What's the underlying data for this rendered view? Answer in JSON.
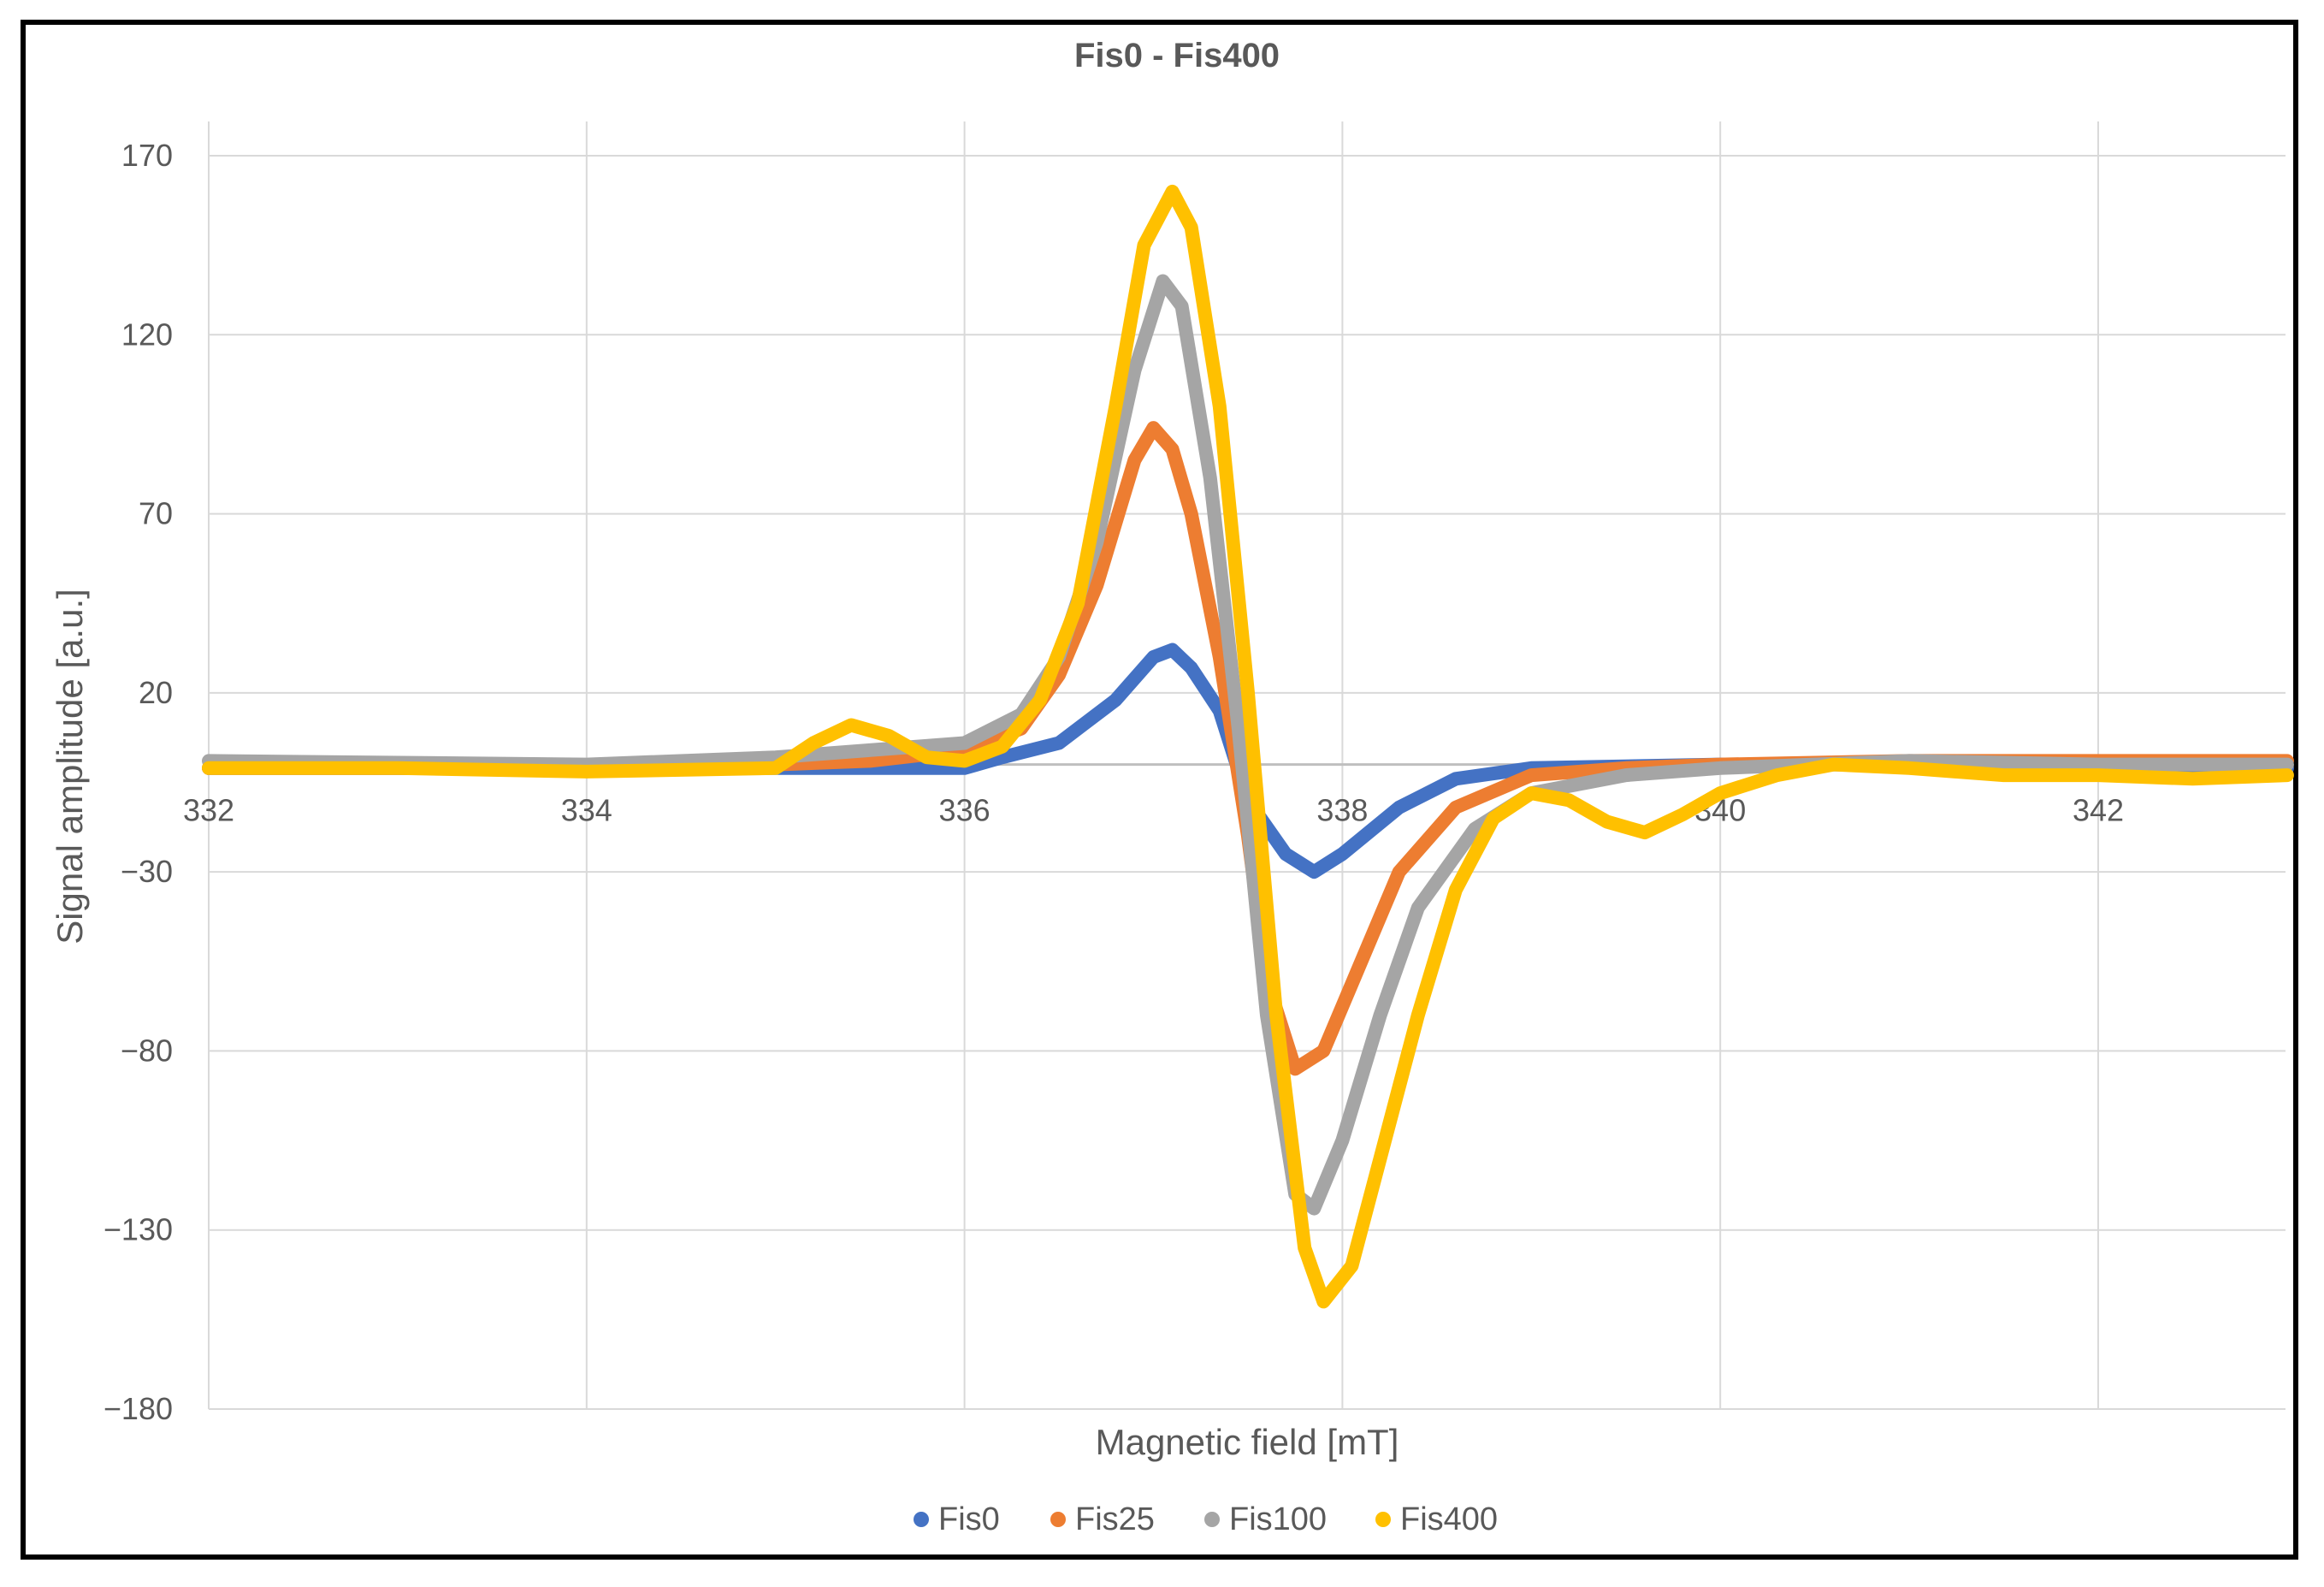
{
  "chart_data": {
    "type": "scatter",
    "title": "Fis0 - Fis400",
    "xlabel": "Magnetic field [mT]",
    "ylabel": "Signal amplitude [a.u.]",
    "xlim": [
      332,
      343
    ],
    "ylim": [
      -180,
      170
    ],
    "x_ticks": [
      "332",
      "334",
      "336",
      "338",
      "340",
      "342"
    ],
    "y_ticks": [
      "170",
      "120",
      "70",
      "20",
      "−30",
      "−80",
      "−130",
      "−180"
    ],
    "x_tick_values": [
      332,
      334,
      336,
      338,
      340,
      342
    ],
    "y_tick_values": [
      170,
      120,
      70,
      20,
      -30,
      -80,
      -130,
      -180
    ],
    "grid": true,
    "legend_position": "bottom",
    "series": [
      {
        "name": "Fis0",
        "color": "#4472C4",
        "points": [
          [
            332,
            -1
          ],
          [
            334,
            -1
          ],
          [
            335,
            -1
          ],
          [
            335.5,
            -1
          ],
          [
            336,
            -1
          ],
          [
            336.2,
            2
          ],
          [
            336.5,
            6
          ],
          [
            336.8,
            18
          ],
          [
            337.0,
            30
          ],
          [
            337.1,
            32
          ],
          [
            337.2,
            27
          ],
          [
            337.35,
            15
          ],
          [
            337.5,
            -10
          ],
          [
            337.7,
            -25
          ],
          [
            337.85,
            -30
          ],
          [
            338.0,
            -25
          ],
          [
            338.3,
            -12
          ],
          [
            338.6,
            -4
          ],
          [
            339,
            -1
          ],
          [
            340,
            0
          ],
          [
            341,
            0
          ],
          [
            342,
            0
          ],
          [
            343,
            -1
          ]
        ]
      },
      {
        "name": "Fis25",
        "color": "#ED7D31",
        "points": [
          [
            332,
            -1
          ],
          [
            334,
            -1
          ],
          [
            335,
            0
          ],
          [
            335.5,
            1
          ],
          [
            336,
            4
          ],
          [
            336.3,
            10
          ],
          [
            336.5,
            25
          ],
          [
            336.7,
            50
          ],
          [
            336.9,
            85
          ],
          [
            337.0,
            94
          ],
          [
            337.1,
            88
          ],
          [
            337.2,
            70
          ],
          [
            337.35,
            30
          ],
          [
            337.5,
            -20
          ],
          [
            337.6,
            -60
          ],
          [
            337.75,
            -85
          ],
          [
            337.9,
            -80
          ],
          [
            338.1,
            -55
          ],
          [
            338.3,
            -30
          ],
          [
            338.6,
            -12
          ],
          [
            339,
            -3
          ],
          [
            339.5,
            -1
          ],
          [
            340,
            0
          ],
          [
            341,
            1
          ],
          [
            342,
            1
          ],
          [
            343,
            1
          ]
        ]
      },
      {
        "name": "Fis100",
        "color": "#A5A5A5",
        "points": [
          [
            332,
            1
          ],
          [
            334,
            0
          ],
          [
            335,
            2
          ],
          [
            335.5,
            4
          ],
          [
            336,
            6
          ],
          [
            336.3,
            14
          ],
          [
            336.5,
            30
          ],
          [
            336.7,
            62
          ],
          [
            336.9,
            110
          ],
          [
            337.05,
            135
          ],
          [
            337.15,
            128
          ],
          [
            337.3,
            80
          ],
          [
            337.45,
            10
          ],
          [
            337.6,
            -70
          ],
          [
            337.75,
            -120
          ],
          [
            337.85,
            -124
          ],
          [
            338.0,
            -105
          ],
          [
            338.2,
            -70
          ],
          [
            338.4,
            -40
          ],
          [
            338.7,
            -18
          ],
          [
            339,
            -8
          ],
          [
            339.5,
            -3
          ],
          [
            340,
            -1
          ],
          [
            341,
            1
          ],
          [
            342,
            0
          ],
          [
            343,
            0
          ]
        ]
      },
      {
        "name": "Fis400",
        "color": "#FFC000",
        "points": [
          [
            332,
            -1
          ],
          [
            333,
            -1
          ],
          [
            334,
            -2
          ],
          [
            335,
            -1
          ],
          [
            335.2,
            6
          ],
          [
            335.4,
            11
          ],
          [
            335.6,
            8
          ],
          [
            335.8,
            2
          ],
          [
            336.0,
            1
          ],
          [
            336.2,
            5
          ],
          [
            336.4,
            18
          ],
          [
            336.6,
            45
          ],
          [
            336.8,
            100
          ],
          [
            336.95,
            145
          ],
          [
            337.1,
            160
          ],
          [
            337.2,
            150
          ],
          [
            337.35,
            100
          ],
          [
            337.5,
            20
          ],
          [
            337.65,
            -70
          ],
          [
            337.8,
            -135
          ],
          [
            337.9,
            -150
          ],
          [
            338.05,
            -140
          ],
          [
            338.2,
            -110
          ],
          [
            338.4,
            -70
          ],
          [
            338.6,
            -35
          ],
          [
            338.8,
            -15
          ],
          [
            339.0,
            -8
          ],
          [
            339.2,
            -10
          ],
          [
            339.4,
            -16
          ],
          [
            339.6,
            -19
          ],
          [
            339.8,
            -14
          ],
          [
            340.0,
            -8
          ],
          [
            340.3,
            -3
          ],
          [
            340.6,
            0
          ],
          [
            341.0,
            -1
          ],
          [
            341.5,
            -3
          ],
          [
            342.0,
            -3
          ],
          [
            342.5,
            -4
          ],
          [
            343.0,
            -3
          ]
        ]
      }
    ]
  }
}
